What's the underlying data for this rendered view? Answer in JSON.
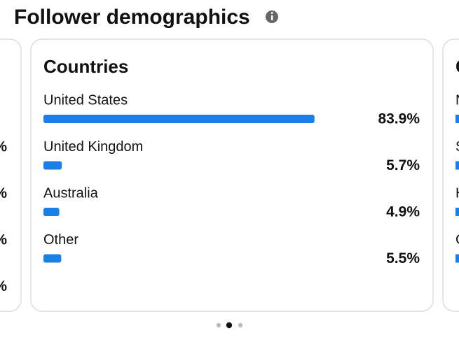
{
  "header": {
    "title": "Follower demographics"
  },
  "chart_data": {
    "type": "bar",
    "title": "Countries",
    "categories": [
      "United States",
      "United Kingdom",
      "Australia",
      "Other"
    ],
    "values": [
      83.9,
      5.7,
      4.9,
      5.5
    ],
    "value_labels": [
      "83.9%",
      "5.7%",
      "4.9%",
      "5.5%"
    ],
    "color": "#1b7fe8",
    "xlim": [
      0,
      100
    ]
  },
  "left_card": {
    "labels": [
      "%",
      "%",
      "%",
      "%"
    ]
  },
  "right_card": {
    "title": "C",
    "labels": [
      "N",
      "S",
      "H",
      "C"
    ]
  }
}
